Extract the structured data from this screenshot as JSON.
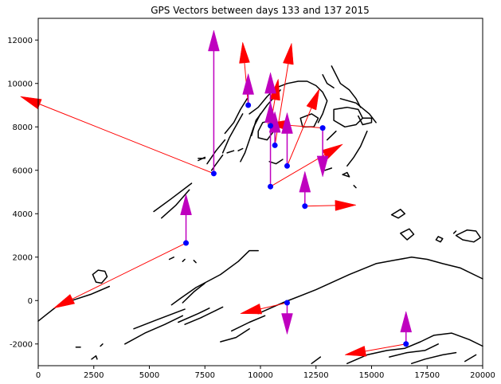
{
  "chart_data": {
    "type": "scatter",
    "title": "GPS Vectors between days 133 and 137 2015",
    "xlabel": "",
    "ylabel": "",
    "xlim": [
      0,
      20000
    ],
    "ylim": [
      -3000,
      13000
    ],
    "x_ticks": [
      0,
      2500,
      5000,
      7500,
      10000,
      12500,
      15000,
      17500,
      20000
    ],
    "y_ticks": [
      -2000,
      0,
      2000,
      4000,
      6000,
      8000,
      10000,
      12000
    ],
    "grid": false,
    "legend": "none",
    "colors": {
      "station": "#0000ff",
      "horizontal_vector": "#ff0000",
      "vertical_vector": "#bf00bf",
      "contour": "#000000"
    },
    "stations": [
      {
        "x": 7900,
        "y": 5850,
        "horizontal_to": [
          -800,
          9400
        ],
        "vertical_to": [
          7900,
          12450
        ]
      },
      {
        "x": 9450,
        "y": 9000,
        "horizontal_to": [
          9200,
          11900
        ],
        "vertical_to": [
          9450,
          10450
        ]
      },
      {
        "x": 10450,
        "y": 8050,
        "horizontal_to": [
          10800,
          10200
        ],
        "vertical_to": [
          10450,
          10500
        ]
      },
      {
        "x": 10450,
        "y": 5250,
        "horizontal_to": [
          13700,
          7200
        ],
        "vertical_to": [
          10450,
          9150
        ]
      },
      {
        "x": 10650,
        "y": 7150,
        "horizontal_to": [
          11400,
          11850
        ],
        "vertical_to": [
          10650,
          8700
        ]
      },
      {
        "x": 11200,
        "y": 6200,
        "horizontal_to": [
          12650,
          9750
        ],
        "vertical_to": [
          11200,
          8650
        ]
      },
      {
        "x": 12800,
        "y": 7950,
        "horizontal_to": [
          10300,
          8150
        ],
        "vertical_to": [
          12800,
          5700
        ]
      },
      {
        "x": 12000,
        "y": 4350,
        "horizontal_to": [
          14300,
          4400
        ],
        "vertical_to": [
          12000,
          5950
        ]
      },
      {
        "x": 6650,
        "y": 2650,
        "horizontal_to": [
          700,
          -350
        ],
        "vertical_to": [
          6650,
          4900
        ]
      },
      {
        "x": 11200,
        "y": -100,
        "horizontal_to": [
          9100,
          -600
        ],
        "vertical_to": [
          11200,
          -1550
        ]
      },
      {
        "x": 16550,
        "y": -2000,
        "horizontal_to": [
          13800,
          -2500
        ],
        "vertical_to": [
          16550,
          -500
        ]
      }
    ],
    "contours": [
      [
        [
          0,
          -950
        ],
        [
          300,
          -700
        ],
        [
          800,
          -300
        ],
        [
          1500,
          0
        ],
        [
          2400,
          300
        ],
        [
          3200,
          650
        ]
      ],
      [
        [
          1700,
          -2150
        ],
        [
          1900,
          -2150
        ]
      ],
      [
        [
          2400,
          -2700
        ],
        [
          2600,
          -2550
        ],
        [
          2650,
          -2700
        ]
      ],
      [
        [
          2800,
          -2100
        ],
        [
          2900,
          -2000
        ]
      ],
      [
        [
          2450,
          1200
        ],
        [
          2700,
          1400
        ],
        [
          3000,
          1350
        ],
        [
          3100,
          1100
        ],
        [
          2850,
          800
        ],
        [
          2600,
          850
        ],
        [
          2450,
          1200
        ]
      ],
      [
        [
          5900,
          1900
        ],
        [
          6100,
          2000
        ]
      ],
      [
        [
          6500,
          1800
        ],
        [
          6600,
          1900
        ]
      ],
      [
        [
          7000,
          1850
        ],
        [
          7100,
          1750
        ]
      ],
      [
        [
          5200,
          4100
        ],
        [
          6000,
          4700
        ],
        [
          6900,
          5400
        ]
      ],
      [
        [
          5550,
          3800
        ],
        [
          6200,
          4400
        ],
        [
          6800,
          5100
        ]
      ],
      [
        [
          7200,
          6450
        ],
        [
          7500,
          6600
        ]
      ],
      [
        [
          7800,
          6000
        ],
        [
          8300,
          6700
        ]
      ],
      [
        [
          8500,
          6800
        ],
        [
          8800,
          6900
        ]
      ],
      [
        [
          9000,
          6900
        ],
        [
          9200,
          7000
        ]
      ],
      [
        [
          7200,
          6550
        ],
        [
          7500,
          6550
        ]
      ],
      [
        [
          3900,
          -2000
        ],
        [
          4800,
          -1500
        ],
        [
          5700,
          -1100
        ],
        [
          6500,
          -700
        ]
      ],
      [
        [
          4300,
          -1300
        ],
        [
          5300,
          -900
        ],
        [
          6600,
          -400
        ]
      ],
      [
        [
          6300,
          -1000
        ],
        [
          7200,
          -600
        ],
        [
          7700,
          -350
        ]
      ],
      [
        [
          6500,
          -100
        ],
        [
          7000,
          400
        ],
        [
          7500,
          800
        ]
      ],
      [
        [
          6000,
          -200
        ],
        [
          6400,
          100
        ],
        [
          7100,
          600
        ],
        [
          8200,
          1200
        ],
        [
          9000,
          1800
        ],
        [
          9500,
          2300
        ],
        [
          9900,
          2300
        ]
      ],
      [
        [
          6600,
          -1100
        ],
        [
          7300,
          -800
        ],
        [
          7900,
          -500
        ],
        [
          8300,
          -300
        ]
      ],
      [
        [
          8200,
          -1900
        ],
        [
          8900,
          -1700
        ],
        [
          9500,
          -1300
        ]
      ],
      [
        [
          8700,
          -1400
        ],
        [
          9500,
          -1000
        ],
        [
          10200,
          -700
        ]
      ],
      [
        [
          9900,
          -600
        ],
        [
          11000,
          -100
        ],
        [
          12500,
          500
        ],
        [
          14000,
          1200
        ],
        [
          15200,
          1700
        ],
        [
          16000,
          1850
        ],
        [
          16800,
          2000
        ],
        [
          17500,
          1900
        ],
        [
          18200,
          1700
        ],
        [
          19000,
          1500
        ],
        [
          20000,
          1000
        ]
      ],
      [
        [
          13900,
          -2900
        ],
        [
          14800,
          -2500
        ],
        [
          15700,
          -2300
        ],
        [
          16500,
          -2200
        ],
        [
          17200,
          -1900
        ],
        [
          17800,
          -1600
        ],
        [
          18600,
          -1500
        ],
        [
          19400,
          -1800
        ],
        [
          20000,
          -2100
        ]
      ],
      [
        [
          15800,
          -2600
        ],
        [
          16600,
          -2400
        ],
        [
          17400,
          -2300
        ],
        [
          18000,
          -2000
        ]
      ],
      [
        [
          16800,
          -2900
        ],
        [
          17400,
          -2700
        ],
        [
          18200,
          -2500
        ],
        [
          18800,
          -2400
        ]
      ],
      [
        [
          19200,
          -2800
        ],
        [
          19700,
          -2500
        ]
      ],
      [
        [
          12300,
          -2900
        ],
        [
          12700,
          -2600
        ]
      ],
      [
        [
          15900,
          3950
        ],
        [
          16200,
          3800
        ],
        [
          16500,
          4000
        ],
        [
          16300,
          4200
        ],
        [
          15900,
          3950
        ]
      ],
      [
        [
          16300,
          3100
        ],
        [
          16700,
          3300
        ],
        [
          16900,
          3050
        ],
        [
          16600,
          2800
        ],
        [
          16300,
          3100
        ]
      ],
      [
        [
          17900,
          2800
        ],
        [
          18100,
          2700
        ],
        [
          18200,
          2850
        ],
        [
          18000,
          2950
        ],
        [
          17900,
          2800
        ]
      ],
      [
        [
          18800,
          3000
        ],
        [
          19100,
          2800
        ],
        [
          19600,
          2700
        ],
        [
          19900,
          2900
        ],
        [
          19700,
          3200
        ],
        [
          19300,
          3250
        ],
        [
          18800,
          3000
        ]
      ],
      [
        [
          18700,
          3100
        ],
        [
          18800,
          3200
        ]
      ],
      [
        [
          14200,
          5300
        ],
        [
          14300,
          5200
        ]
      ],
      [
        [
          9500,
          8600
        ],
        [
          9900,
          8900
        ],
        [
          10300,
          9400
        ],
        [
          10700,
          9800
        ],
        [
          11200,
          10000
        ],
        [
          11700,
          10100
        ],
        [
          12100,
          10100
        ],
        [
          12500,
          9900
        ],
        [
          12800,
          9600
        ],
        [
          13000,
          9200
        ],
        [
          12800,
          8600
        ],
        [
          12600,
          8200
        ]
      ],
      [
        [
          9600,
          7600
        ],
        [
          9800,
          8300
        ],
        [
          10300,
          9000
        ],
        [
          10900,
          9700
        ]
      ],
      [
        [
          9100,
          6400
        ],
        [
          9300,
          6800
        ],
        [
          9500,
          7400
        ],
        [
          9700,
          8000
        ],
        [
          10000,
          8600
        ]
      ],
      [
        [
          8400,
          7700
        ],
        [
          8800,
          8200
        ],
        [
          9100,
          8800
        ],
        [
          9400,
          9300
        ]
      ],
      [
        [
          8300,
          6800
        ],
        [
          8600,
          7500
        ],
        [
          9200,
          8600
        ]
      ],
      [
        [
          7600,
          6300
        ],
        [
          8000,
          6900
        ],
        [
          8400,
          7400
        ]
      ],
      [
        [
          9900,
          7500
        ],
        [
          10300,
          7400
        ],
        [
          10600,
          7800
        ],
        [
          10500,
          8300
        ],
        [
          10100,
          8200
        ],
        [
          9900,
          7800
        ],
        [
          9900,
          7500
        ]
      ],
      [
        [
          11800,
          8400
        ],
        [
          12300,
          8600
        ],
        [
          12600,
          8400
        ],
        [
          12400,
          8000
        ],
        [
          11900,
          8000
        ],
        [
          11800,
          8400
        ]
      ],
      [
        [
          10400,
          6400
        ],
        [
          10700,
          6300
        ],
        [
          11000,
          6500
        ]
      ],
      [
        [
          13000,
          7400
        ],
        [
          13200,
          7600
        ],
        [
          13400,
          7800
        ]
      ],
      [
        [
          12900,
          6000
        ],
        [
          13200,
          6100
        ]
      ],
      [
        [
          13700,
          5800
        ],
        [
          14000,
          5700
        ],
        [
          13900,
          5900
        ],
        [
          13700,
          5800
        ]
      ],
      [
        [
          13300,
          8800
        ],
        [
          13900,
          8900
        ],
        [
          14400,
          8800
        ],
        [
          14600,
          8400
        ],
        [
          14300,
          8100
        ],
        [
          13800,
          8000
        ],
        [
          13300,
          8300
        ],
        [
          13300,
          8800
        ]
      ],
      [
        [
          13600,
          9300
        ],
        [
          14300,
          9100
        ],
        [
          14900,
          8600
        ],
        [
          15200,
          8200
        ]
      ],
      [
        [
          14800,
          7800
        ],
        [
          14500,
          7100
        ],
        [
          14200,
          6600
        ],
        [
          13900,
          6200
        ]
      ],
      [
        [
          12800,
          10400
        ],
        [
          13000,
          10000
        ],
        [
          13300,
          9800
        ]
      ],
      [
        [
          13200,
          10800
        ],
        [
          13600,
          10000
        ],
        [
          14000,
          9700
        ],
        [
          14300,
          9300
        ],
        [
          14500,
          8900
        ]
      ],
      [
        [
          14400,
          8500
        ],
        [
          14600,
          8100
        ],
        [
          15000,
          8200
        ],
        [
          15000,
          8400
        ],
        [
          14600,
          8400
        ]
      ]
    ]
  }
}
